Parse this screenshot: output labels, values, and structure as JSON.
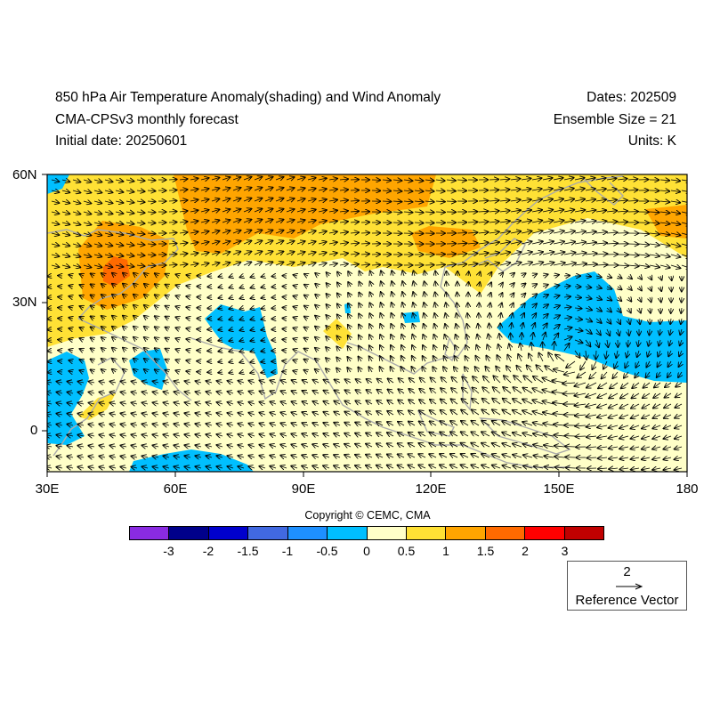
{
  "header": {
    "title": "850 hPa Air Temperature Anomaly(shading) and Wind Anomaly",
    "subtitle": "CMA-CPSv3 monthly forecast",
    "initial_date": "Initial date: 20250601",
    "dates": "Dates: 202509",
    "ensemble": "Ensemble Size = 21",
    "units": "Units: K"
  },
  "axes": {
    "lat_labels": [
      "60N",
      "30N",
      "0"
    ],
    "lon_labels": [
      "30E",
      "60E",
      "90E",
      "120E",
      "150E",
      "180"
    ]
  },
  "copyright": "Copyright © CEMC, CMA",
  "colorbar": {
    "colors": [
      "#8a2be2",
      "#00008b",
      "#0000cd",
      "#4169e1",
      "#1e90ff",
      "#00bfff",
      "#ffffc8",
      "#ffe135",
      "#ffa500",
      "#ff6a00",
      "#ff0000",
      "#c00000"
    ],
    "labels": [
      "-3",
      "-2",
      "-1.5",
      "-1",
      "-0.5",
      "0",
      "0.5",
      "1",
      "1.5",
      "2",
      "3"
    ]
  },
  "reference": {
    "value": "2",
    "label": "Reference Vector"
  }
}
